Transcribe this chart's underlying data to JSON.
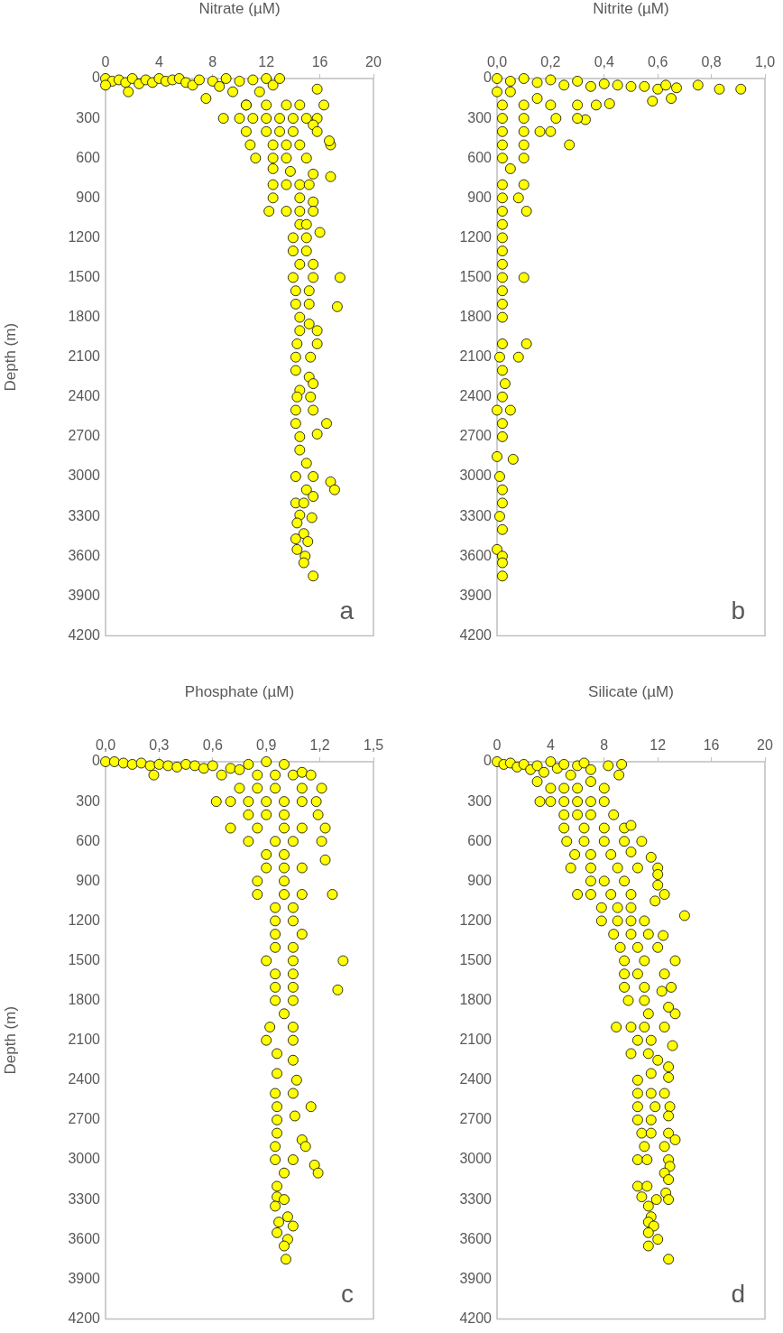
{
  "chart_data": [
    {
      "type": "scatter",
      "xlabel": "Nitrate (µM)",
      "ylabel": "Depth (m)",
      "annotations": [
        "a"
      ],
      "marker": "circle",
      "xlim": [
        0,
        20
      ],
      "xticks": [
        0,
        4,
        8,
        12,
        16,
        20
      ],
      "ylim": [
        4200,
        0
      ],
      "yticks": [
        0,
        300,
        600,
        900,
        1200,
        1500,
        1800,
        2100,
        2400,
        2700,
        3000,
        3300,
        3600,
        3900,
        4200
      ],
      "series": [
        {
          "color": "#ffff00",
          "x": [
            0,
            0.5,
            1,
            1.5,
            2,
            2.5,
            3,
            3.5,
            4,
            4.5,
            5,
            5.5,
            6,
            6.5,
            7,
            7.5,
            8,
            8.5,
            9,
            9.5,
            10,
            10.5,
            11,
            11.5,
            12,
            12.5,
            13,
            1.7,
            0,
            8.8,
            10,
            11,
            12,
            13,
            14,
            15,
            15.8,
            15.5,
            10.5,
            12,
            13.5,
            14.5,
            16.3,
            15.8,
            10.5,
            12,
            13,
            14,
            15.8,
            10.8,
            12.5,
            13.5,
            14.5,
            16.8,
            16.7,
            11.2,
            12.5,
            13.5,
            15,
            12.5,
            13.8,
            15.5,
            16.8,
            12.5,
            13.5,
            14.5,
            15.2,
            12.5,
            14.5,
            15.5,
            12.2,
            13.5,
            14.5,
            15.5,
            14.5,
            15,
            14,
            15,
            16,
            14,
            15,
            14.5,
            15.5,
            14,
            15.5,
            17.5,
            14.2,
            15.2,
            14.2,
            15.2,
            17.3,
            14.5,
            15.2,
            14.5,
            15.8,
            14.3,
            15.8,
            14.2,
            15.3,
            14.2,
            15.2,
            14.5,
            15.5,
            14.3,
            15.3,
            14.2,
            15.5,
            14.2,
            16.5,
            14.5,
            15.8,
            14.5,
            15,
            14.2,
            15.5,
            16.8,
            17.1,
            15,
            15.5,
            14.2,
            14.8,
            14.5,
            15.4,
            14.3,
            14.8,
            14.2,
            15.1,
            14.3,
            14.9,
            14.8,
            15.5
          ],
          "values": [
            0,
            20,
            10,
            30,
            0,
            40,
            10,
            30,
            0,
            20,
            10,
            0,
            30,
            50,
            10,
            150,
            20,
            60,
            0,
            100,
            20,
            200,
            10,
            100,
            0,
            50,
            0,
            100,
            50,
            300,
            300,
            300,
            300,
            300,
            300,
            300,
            300,
            350,
            200,
            200,
            200,
            200,
            200,
            80,
            400,
            400,
            400,
            400,
            400,
            500,
            500,
            500,
            500,
            500,
            470,
            600,
            600,
            600,
            600,
            680,
            700,
            720,
            740,
            800,
            800,
            800,
            800,
            900,
            900,
            930,
            1000,
            1000,
            1000,
            1000,
            1100,
            1100,
            1200,
            1200,
            1160,
            1300,
            1300,
            1400,
            1400,
            1500,
            1500,
            1500,
            1600,
            1600,
            1700,
            1700,
            1720,
            1800,
            1850,
            1900,
            1900,
            2000,
            2000,
            2100,
            2100,
            2200,
            2250,
            2350,
            2300,
            2400,
            2400,
            2500,
            2500,
            2600,
            2600,
            2700,
            2680,
            2800,
            2900,
            3000,
            3000,
            3040,
            3100,
            3100,
            3150,
            3200,
            3200,
            3290,
            3310,
            3350,
            3430,
            3470,
            3490,
            3550,
            3600,
            3650,
            3750
          ]
        }
      ]
    },
    {
      "type": "scatter",
      "xlabel": "Nitrite (µM)",
      "annotations": [
        "b"
      ],
      "marker": "circle",
      "xlim": [
        0,
        1
      ],
      "xticks": [
        {
          "value": 0,
          "label": "0,0"
        },
        {
          "value": 0.2,
          "label": "0,2"
        },
        {
          "value": 0.4,
          "label": "0,4"
        },
        {
          "value": 0.6,
          "label": "0,6"
        },
        {
          "value": 0.8,
          "label": "0,8"
        },
        {
          "value": 1,
          "label": "1,0"
        }
      ],
      "ylim": [
        4200,
        0
      ],
      "yticks": [
        0,
        300,
        600,
        900,
        1200,
        1500,
        1800,
        2100,
        2400,
        2700,
        3000,
        3300,
        3600,
        3900,
        4200
      ],
      "series": [
        {
          "color": "#ffff00",
          "x": [
            0,
            0.05,
            0.1,
            0.15,
            0.2,
            0.25,
            0.3,
            0.35,
            0.4,
            0.45,
            0.5,
            0.55,
            0.6,
            0.63,
            0.67,
            0.75,
            0.83,
            0.91,
            0.58,
            0.65,
            0.42,
            0.37,
            0.3,
            0.2,
            0.1,
            0.02,
            0,
            0.05,
            0.15,
            0.33,
            0.3,
            0.22,
            0.1,
            0.02,
            0.16,
            0.2,
            0.1,
            0.02,
            0.27,
            0.1,
            0.02,
            0.1,
            0.02,
            0.05,
            0.1,
            0.02,
            0.08,
            0.02,
            0.11,
            0.02,
            0.02,
            0.02,
            0.02,
            0.02,
            0.1,
            0.02,
            0.02,
            0.02,
            0.02,
            0.11,
            0.02,
            0.08,
            0.01,
            0.02,
            0.03,
            0.02,
            0.05,
            0,
            0.02,
            0.02,
            0.06,
            0,
            0.01,
            0.02,
            0.02,
            0.01,
            0.02,
            0,
            0.02,
            0.02,
            0.02
          ],
          "values": [
            0,
            20,
            0,
            30,
            10,
            50,
            20,
            60,
            40,
            50,
            60,
            60,
            80,
            50,
            70,
            50,
            80,
            80,
            170,
            150,
            190,
            200,
            200,
            200,
            200,
            200,
            100,
            100,
            150,
            310,
            300,
            300,
            300,
            300,
            400,
            400,
            400,
            400,
            500,
            500,
            500,
            600,
            600,
            680,
            800,
            800,
            900,
            900,
            1000,
            1000,
            1100,
            1200,
            1300,
            1400,
            1500,
            1500,
            1600,
            1700,
            1800,
            2000,
            2000,
            2100,
            2100,
            2200,
            2300,
            2400,
            2500,
            2500,
            2600,
            2700,
            2870,
            2850,
            3000,
            3100,
            3200,
            3300,
            3400,
            3550,
            3600,
            3650,
            3750
          ]
        }
      ]
    },
    {
      "type": "scatter",
      "xlabel": "Phosphate (µM)",
      "ylabel": "Depth (m)",
      "annotations": [
        "c"
      ],
      "marker": "circle",
      "xlim": [
        0,
        1.5
      ],
      "xticks": [
        {
          "value": 0,
          "label": "0,0"
        },
        {
          "value": 0.3,
          "label": "0,3"
        },
        {
          "value": 0.6,
          "label": "0,6"
        },
        {
          "value": 0.9,
          "label": "0,9"
        },
        {
          "value": 1.2,
          "label": "1,2"
        },
        {
          "value": 1.5,
          "label": "1,5"
        }
      ],
      "ylim": [
        4200,
        0
      ],
      "yticks": [
        0,
        300,
        600,
        900,
        1200,
        1500,
        1800,
        2100,
        2400,
        2700,
        3000,
        3300,
        3600,
        3900,
        4200
      ],
      "series": [
        {
          "color": "#ffff00",
          "x": [
            0,
            0.05,
            0.1,
            0.15,
            0.2,
            0.25,
            0.27,
            0.3,
            0.35,
            0.4,
            0.45,
            0.5,
            0.55,
            0.6,
            0.65,
            0.7,
            0.75,
            0.8,
            0.85,
            0.9,
            0.95,
            1,
            1.05,
            1.1,
            1.15,
            0.75,
            0.85,
            0.95,
            1.1,
            1.21,
            0.62,
            0.7,
            0.8,
            0.9,
            1,
            1.1,
            1.18,
            0.8,
            0.9,
            1,
            1.19,
            0.7,
            0.85,
            1,
            1.1,
            1.23,
            0.8,
            0.95,
            1.05,
            1.21,
            0.9,
            1,
            1.23,
            0.9,
            1,
            1.1,
            0.85,
            1,
            0.85,
            1,
            1.1,
            1.27,
            0.95,
            1.05,
            0.95,
            1.05,
            0.95,
            1.1,
            0.95,
            1.05,
            0.9,
            1.05,
            1.33,
            0.95,
            1.05,
            0.95,
            1.05,
            1.3,
            0.95,
            1.05,
            1,
            0.92,
            1.05,
            0.9,
            1.05,
            0.96,
            1.05,
            0.96,
            1.07,
            0.95,
            1.05,
            0.96,
            1.15,
            0.96,
            1.06,
            0.96,
            1.1,
            0.95,
            1.12,
            0.95,
            1.05,
            1.17,
            1.19,
            1,
            0.96,
            0.96,
            1,
            0.95,
            1.02,
            0.97,
            1.05,
            0.96,
            1.02,
            1,
            1.01
          ],
          "values": [
            0,
            0,
            10,
            20,
            10,
            30,
            100,
            20,
            30,
            40,
            20,
            30,
            50,
            30,
            100,
            50,
            60,
            20,
            100,
            0,
            100,
            20,
            100,
            80,
            100,
            200,
            200,
            200,
            200,
            200,
            300,
            300,
            300,
            300,
            300,
            300,
            300,
            400,
            400,
            400,
            400,
            500,
            500,
            500,
            500,
            500,
            600,
            600,
            600,
            600,
            700,
            700,
            740,
            800,
            800,
            800,
            900,
            900,
            1000,
            1000,
            1000,
            1000,
            1100,
            1100,
            1200,
            1200,
            1300,
            1300,
            1400,
            1400,
            1500,
            1500,
            1500,
            1600,
            1600,
            1700,
            1700,
            1720,
            1800,
            1800,
            1900,
            2000,
            2000,
            2100,
            2100,
            2200,
            2250,
            2350,
            2400,
            2500,
            2500,
            2600,
            2600,
            2700,
            2670,
            2800,
            2850,
            2900,
            2900,
            3000,
            3000,
            3040,
            3100,
            3100,
            3200,
            3280,
            3300,
            3350,
            3430,
            3470,
            3500,
            3550,
            3600,
            3650,
            3750
          ]
        }
      ]
    },
    {
      "type": "scatter",
      "xlabel": "Silicate (µM)",
      "annotations": [
        "d"
      ],
      "marker": "circle",
      "xlim": [
        0,
        20
      ],
      "xticks": [
        0,
        4,
        8,
        12,
        16,
        20
      ],
      "ylim": [
        4200,
        0
      ],
      "yticks": [
        0,
        300,
        600,
        900,
        1200,
        1500,
        1800,
        2100,
        2400,
        2700,
        3000,
        3300,
        3600,
        3900,
        4200
      ],
      "series": [
        {
          "color": "#ffff00",
          "x": [
            0,
            0.5,
            1,
            1.5,
            2,
            2.5,
            3,
            3.5,
            4,
            4.5,
            5,
            5.5,
            6,
            6.5,
            7,
            8.3,
            9.3,
            9.1,
            3.2,
            3,
            4,
            5,
            6,
            7,
            8,
            4,
            5,
            6,
            7,
            8,
            5,
            6,
            7,
            8.7,
            5,
            6.5,
            8,
            9.5,
            10,
            5.2,
            6.5,
            8,
            9.5,
            10.8,
            5.8,
            7,
            8.5,
            10,
            11.5,
            5.5,
            7,
            9,
            10.5,
            12,
            12,
            7,
            8,
            9.5,
            12,
            6,
            7,
            8.5,
            10,
            12.5,
            11.8,
            7.8,
            9,
            10,
            7.8,
            9,
            10,
            11,
            14,
            8.7,
            10,
            11.3,
            12.4,
            9.2,
            10.5,
            12,
            9.5,
            11,
            13.3,
            9.5,
            10.5,
            12.5,
            9.5,
            11,
            13,
            12.3,
            9.8,
            11,
            11.3,
            13.3,
            12.8,
            8.9,
            10,
            11,
            12.5,
            10.5,
            11.5,
            13.1,
            10,
            11.3,
            12,
            12.8,
            10.5,
            11.5,
            12.8,
            10.5,
            11.5,
            12.5,
            10.5,
            11.8,
            12.9,
            10.5,
            11.5,
            12.8,
            10.8,
            11.5,
            12.8,
            11,
            12.5,
            13.3,
            10.5,
            11.2,
            12.8,
            12.9,
            12.5,
            12.8,
            10.5,
            11.2,
            12.6,
            10.8,
            11.9,
            12.8,
            11.3,
            11.5,
            11.3,
            11.7,
            11.3,
            12,
            11.3,
            12.8
          ],
          "values": [
            0,
            20,
            10,
            40,
            20,
            60,
            30,
            80,
            0,
            50,
            20,
            100,
            30,
            10,
            60,
            30,
            20,
            100,
            300,
            150,
            200,
            200,
            200,
            150,
            200,
            300,
            300,
            300,
            300,
            300,
            400,
            400,
            400,
            400,
            500,
            500,
            500,
            500,
            480,
            600,
            600,
            600,
            600,
            600,
            700,
            700,
            700,
            680,
            720,
            800,
            800,
            800,
            800,
            800,
            850,
            900,
            900,
            900,
            930,
            1000,
            1000,
            1000,
            1000,
            1000,
            1050,
            1100,
            1100,
            1100,
            1200,
            1200,
            1200,
            1200,
            1160,
            1300,
            1300,
            1300,
            1310,
            1400,
            1400,
            1400,
            1500,
            1500,
            1500,
            1600,
            1600,
            1600,
            1700,
            1700,
            1700,
            1730,
            1800,
            1800,
            1900,
            1900,
            1850,
            2000,
            2000,
            2000,
            2000,
            2100,
            2100,
            2140,
            2200,
            2200,
            2250,
            2300,
            2400,
            2350,
            2380,
            2500,
            2500,
            2500,
            2600,
            2600,
            2600,
            2700,
            2700,
            2670,
            2800,
            2800,
            2800,
            2900,
            2900,
            2850,
            3000,
            3000,
            3000,
            3050,
            3100,
            3150,
            3200,
            3200,
            3250,
            3280,
            3300,
            3300,
            3350,
            3430,
            3470,
            3500,
            3550,
            3600,
            3650,
            3750
          ]
        }
      ]
    }
  ]
}
